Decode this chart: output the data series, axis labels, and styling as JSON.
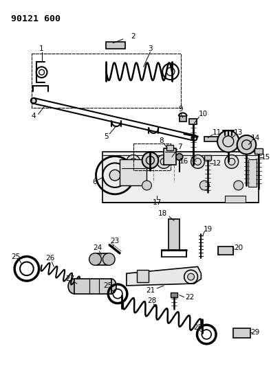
{
  "title": "90121 600",
  "bg_color": "#ffffff",
  "line_color": "#000000",
  "fig_width": 3.94,
  "fig_height": 5.33,
  "dpi": 100
}
